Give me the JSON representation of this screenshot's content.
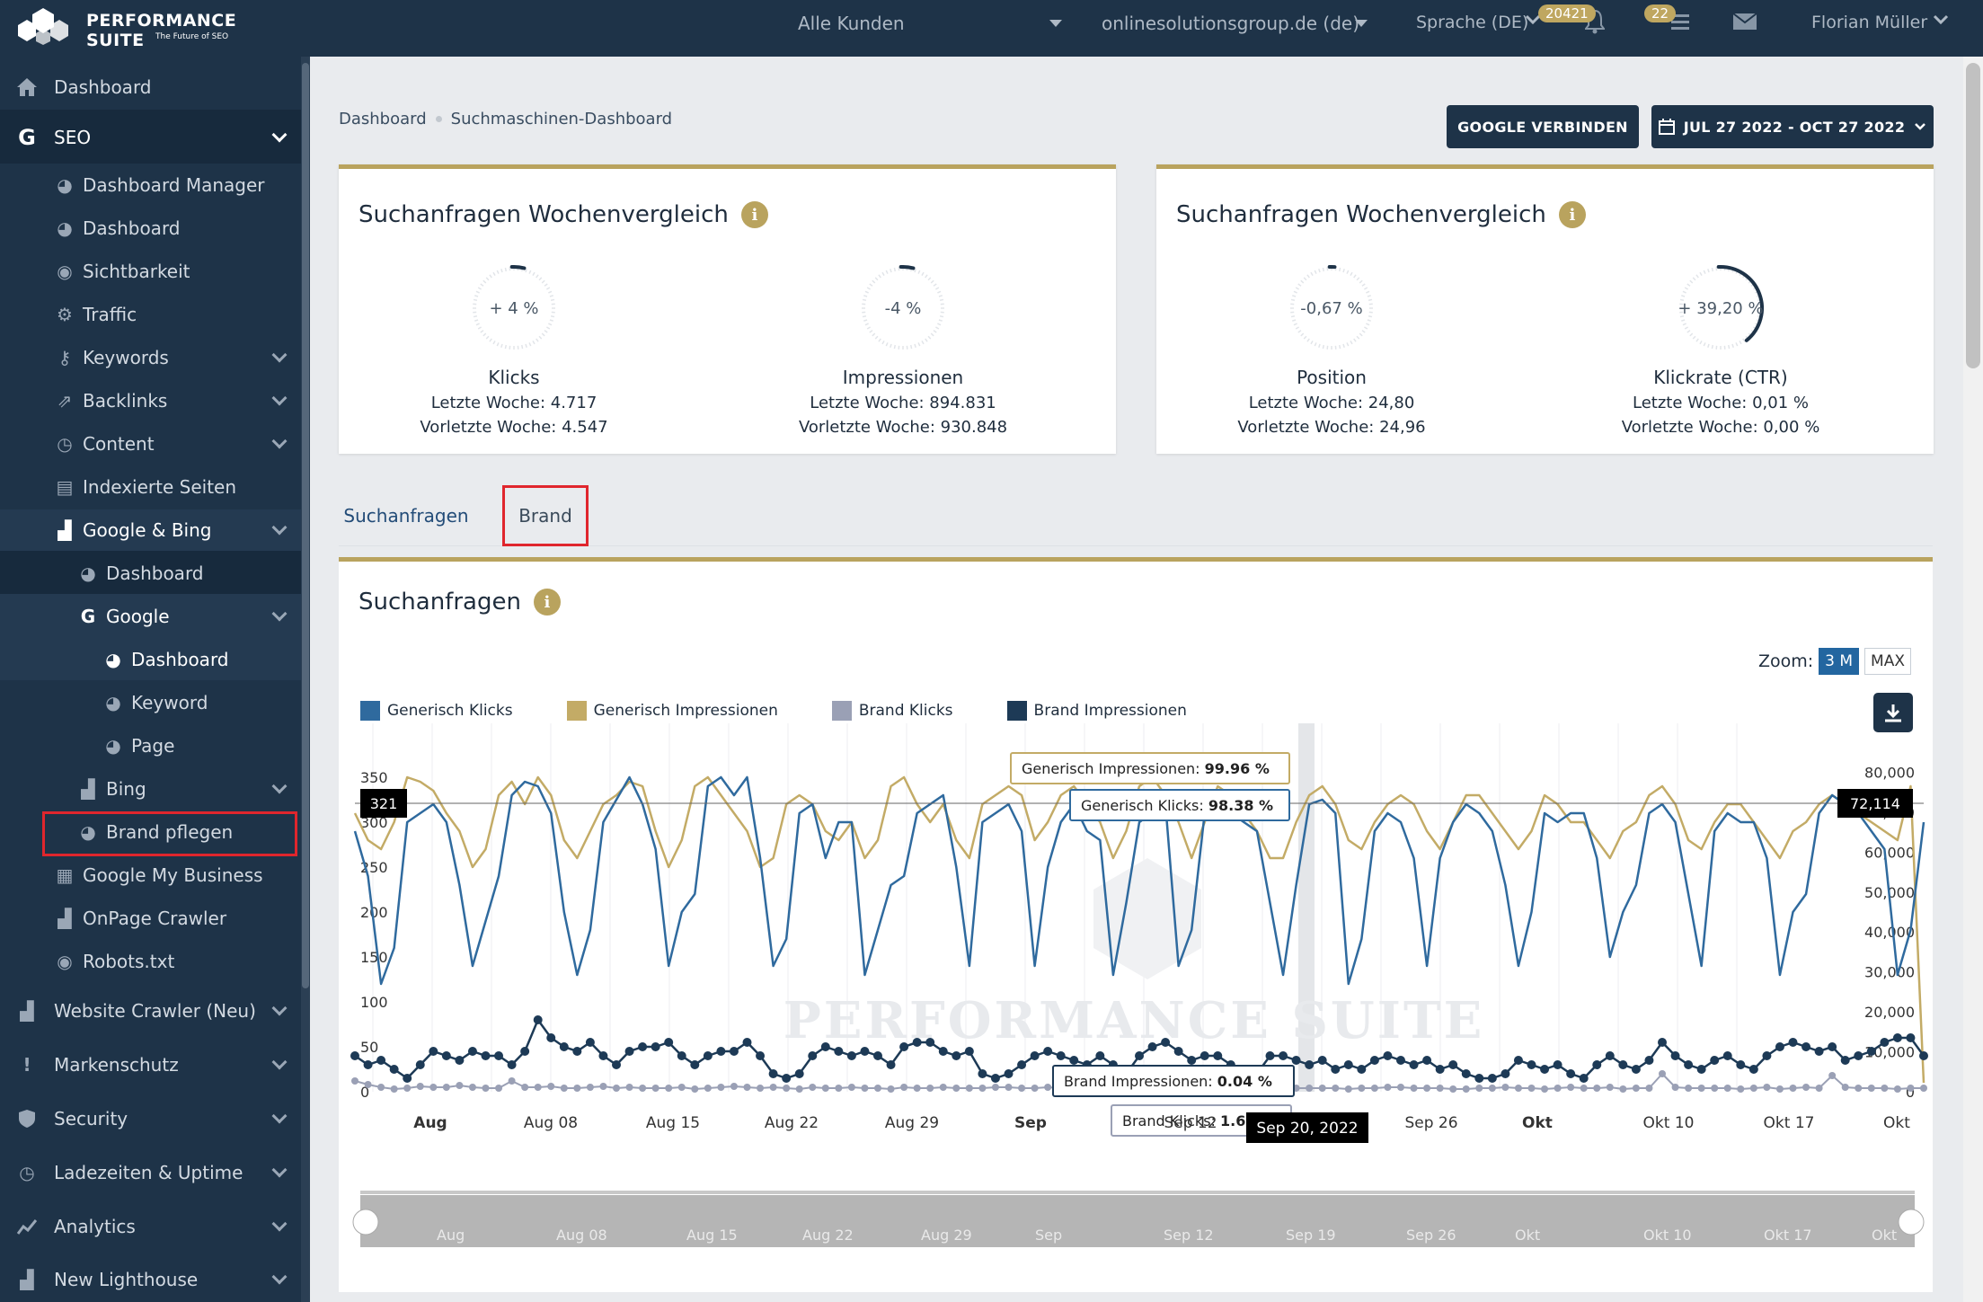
{
  "topbar": {
    "logo_title": "Performance Suite",
    "logo_sub": "The Future of SEO",
    "customer_select": "Alle Kunden",
    "domain_select": "onlinesolutionsgroup.de (de)",
    "language": "Sprache (DE)",
    "notifications_count": "20421",
    "tasks_count": "22",
    "user": "Florian Müller"
  },
  "sidebar": {
    "dashboard": "Dashboard",
    "seo": "SEO",
    "dashboard_manager": "Dashboard Manager",
    "seo_dashboard": "Dashboard",
    "sichtbarkeit": "Sichtbarkeit",
    "traffic": "Traffic",
    "keywords": "Keywords",
    "backlinks": "Backlinks",
    "content": "Content",
    "indexierte": "Indexierte Seiten",
    "google_bing": "Google & Bing",
    "gb_dashboard": "Dashboard",
    "google": "Google",
    "g_dashboard": "Dashboard",
    "g_keyword": "Keyword",
    "g_page": "Page",
    "bing": "Bing",
    "brand_pflegen": "Brand pflegen",
    "gmb": "Google My Business",
    "onpage": "OnPage Crawler",
    "robots": "Robots.txt",
    "website_crawler": "Website Crawler (Neu)",
    "markenschutz": "Markenschutz",
    "security": "Security",
    "ladezeiten": "Ladezeiten & Uptime",
    "analytics": "Analytics",
    "lighthouse": "New Lighthouse"
  },
  "breadcrumb": {
    "first": "Dashboard",
    "second": "Suchmaschinen-Dashboard"
  },
  "buttons": {
    "google_connect": "GOOGLE VERBINDEN",
    "date_range": "JUL 27 2022 - OCT 27 2022"
  },
  "card_left": {
    "title": "Suchanfragen Wochenvergleich",
    "gauges": [
      {
        "value": "+ 4 %",
        "label": "Klicks",
        "line1": "Letzte Woche: 4.717",
        "line2": "Vorletzte Woche: 4.547",
        "fill": 0.04
      },
      {
        "value": "-4 %",
        "label": "Impressionen",
        "line1": "Letzte Woche: 894.831",
        "line2": "Vorletzte Woche: 930.848",
        "fill": 0.04
      }
    ]
  },
  "card_right": {
    "title": "Suchanfragen Wochenvergleich",
    "gauges": [
      {
        "value": "-0,67 %",
        "label": "Position",
        "line1": "Letzte Woche: 24,80",
        "line2": "Vorletzte Woche: 24,96",
        "fill": 0.0067
      },
      {
        "value": "+ 39,20 %",
        "label": "Klickrate (CTR)",
        "line1": "Letzte Woche: 0,01 %",
        "line2": "Vorletzte Woche: 0,00 %",
        "fill": 0.392
      }
    ]
  },
  "tabs": {
    "suchanfragen": "Suchanfragen",
    "brand": "Brand"
  },
  "chart_card": {
    "title": "Suchanfragen",
    "zoom_label": "Zoom:",
    "zoom_3m": "3 M",
    "zoom_max": "MAX"
  },
  "chart_data": {
    "type": "line",
    "legend": [
      "Generisch Klicks",
      "Generisch Impressionen",
      "Brand Klicks",
      "Brand Impressionen"
    ],
    "colors": {
      "generisch_klicks": "#2f6a9e",
      "generisch_impressionen": "#c3ab66",
      "brand_klicks": "#9aa0b5",
      "brand_impressionen": "#1d3a56"
    },
    "y_left": {
      "ticks": [
        0,
        50,
        100,
        150,
        200,
        250,
        300,
        350
      ],
      "range": [
        0,
        400
      ]
    },
    "y_right": {
      "ticks": [
        "0",
        "10,000",
        "20,000",
        "30,000",
        "40,000",
        "50,000",
        "60,000",
        "70,000",
        "80,000"
      ],
      "range": [
        0,
        90000
      ]
    },
    "x_labels": [
      "Aug",
      "Aug 08",
      "Aug 15",
      "Aug 22",
      "Aug 29",
      "Sep",
      "Sep 12",
      "Sep 26",
      "Okt",
      "Okt 10",
      "Okt 17",
      "Okt"
    ],
    "navigator_labels": [
      "Aug",
      "Aug 08",
      "Aug 15",
      "Aug 22",
      "Aug 29",
      "Sep",
      "Sep 12",
      "Sep 19",
      "Sep 26",
      "Okt",
      "Okt 10",
      "Okt 17",
      "Okt"
    ],
    "crosshair": {
      "left_value": "321",
      "right_value": "72,114",
      "date": "Sep 20, 2022"
    },
    "tooltips": [
      {
        "series": "Generisch Impressionen:",
        "value": "99.96 %"
      },
      {
        "series": "Generisch Klicks:",
        "value": "98.38 %"
      },
      {
        "series": "Brand Impressionen:",
        "value": "0.04 %"
      },
      {
        "series": "Brand Klicks:",
        "value": "1.62 %"
      }
    ],
    "watermark": "Performance Suite",
    "generisch_klicks": [
      290,
      240,
      120,
      160,
      300,
      310,
      320,
      300,
      230,
      140,
      190,
      240,
      330,
      345,
      340,
      310,
      200,
      130,
      180,
      300,
      325,
      350,
      320,
      270,
      140,
      200,
      220,
      340,
      350,
      330,
      350,
      260,
      140,
      170,
      310,
      320,
      260,
      300,
      300,
      130,
      180,
      230,
      240,
      310,
      320,
      330,
      250,
      140,
      300,
      310,
      320,
      290,
      140,
      250,
      300,
      320,
      290,
      280,
      130,
      210,
      300,
      310,
      320,
      140,
      180,
      310,
      320,
      310,
      300,
      290,
      210,
      130,
      230,
      320,
      325,
      310,
      120,
      170,
      290,
      310,
      300,
      260,
      140,
      260,
      300,
      320,
      310,
      290,
      230,
      140,
      200,
      310,
      300,
      310,
      310,
      260,
      150,
      200,
      230,
      310,
      320,
      300,
      220,
      140,
      290,
      310,
      300,
      300,
      260,
      130,
      200,
      220,
      310,
      330,
      320,
      310,
      290,
      270,
      130,
      180,
      300
    ],
    "generisch_impressionen": [
      310,
      280,
      270,
      300,
      350,
      345,
      335,
      310,
      290,
      250,
      270,
      330,
      345,
      320,
      350,
      330,
      280,
      260,
      290,
      320,
      330,
      345,
      340,
      290,
      250,
      280,
      340,
      350,
      330,
      310,
      290,
      250,
      260,
      320,
      330,
      320,
      290,
      280,
      300,
      260,
      280,
      340,
      350,
      320,
      300,
      320,
      280,
      260,
      320,
      330,
      340,
      330,
      280,
      300,
      330,
      340,
      320,
      300,
      260,
      290,
      340,
      350,
      330,
      300,
      260,
      300,
      340,
      330,
      310,
      290,
      260,
      260,
      300,
      330,
      340,
      320,
      280,
      270,
      300,
      320,
      330,
      320,
      290,
      270,
      300,
      330,
      330,
      310,
      290,
      270,
      290,
      330,
      320,
      300,
      300,
      280,
      260,
      290,
      300,
      330,
      340,
      320,
      280,
      270,
      300,
      320,
      320,
      300,
      280,
      260,
      290,
      300,
      320,
      330,
      320,
      310,
      300,
      290,
      280,
      340,
      10
    ],
    "brand_klicks": [
      12,
      8,
      5,
      3,
      4,
      6,
      5,
      5,
      7,
      5,
      4,
      4,
      12,
      5,
      5,
      6,
      4,
      4,
      5,
      6,
      4,
      5,
      4,
      4,
      4,
      5,
      3,
      4,
      5,
      6,
      5,
      4,
      5,
      4,
      3,
      5,
      4,
      4,
      5,
      4,
      4,
      3,
      5,
      4,
      4,
      5,
      4,
      4,
      4,
      5,
      5,
      4,
      4,
      5,
      4,
      4,
      4,
      4,
      3,
      5,
      5,
      4,
      4,
      3,
      4,
      4,
      5,
      4,
      4,
      3,
      4,
      5,
      4,
      4,
      4,
      4,
      3,
      4,
      4,
      5,
      5,
      4,
      4,
      4,
      3,
      3,
      4,
      4,
      5,
      4,
      4,
      3,
      4,
      5,
      4,
      4,
      5,
      3,
      4,
      4,
      20,
      5,
      4,
      4,
      4,
      4,
      3,
      4,
      5,
      3,
      4,
      5,
      4,
      18,
      5,
      4,
      4,
      4,
      3,
      4,
      4
    ],
    "brand_impressionen": [
      40,
      30,
      35,
      25,
      15,
      30,
      45,
      40,
      35,
      45,
      40,
      40,
      30,
      45,
      80,
      60,
      50,
      45,
      55,
      40,
      30,
      45,
      50,
      50,
      55,
      40,
      30,
      40,
      45,
      45,
      55,
      40,
      20,
      15,
      20,
      40,
      50,
      45,
      40,
      45,
      40,
      30,
      50,
      55,
      55,
      45,
      40,
      45,
      20,
      15,
      20,
      30,
      40,
      45,
      40,
      35,
      30,
      40,
      30,
      20,
      40,
      50,
      55,
      45,
      35,
      40,
      40,
      30,
      15,
      20,
      40,
      40,
      35,
      30,
      35,
      25,
      30,
      25,
      35,
      40,
      35,
      30,
      35,
      25,
      30,
      20,
      15,
      15,
      20,
      35,
      30,
      25,
      30,
      20,
      15,
      30,
      40,
      30,
      25,
      35,
      55,
      40,
      30,
      25,
      35,
      40,
      30,
      25,
      40,
      50,
      55,
      50,
      45,
      50,
      35,
      40,
      45,
      55,
      60,
      60,
      40
    ]
  }
}
